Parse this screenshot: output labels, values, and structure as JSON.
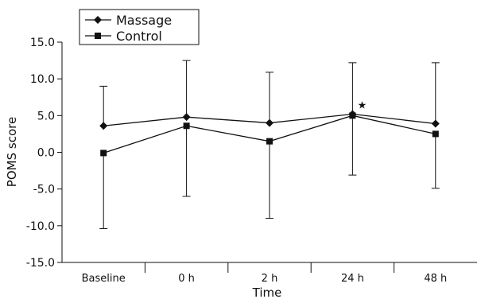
{
  "chart_data": {
    "type": "line",
    "title": "",
    "xlabel": "Time",
    "ylabel": "POMS score",
    "categories": [
      "Baseline",
      "0 h",
      "2 h",
      "24 h",
      "48 h"
    ],
    "ylim": [
      -15.0,
      15.0
    ],
    "yticks": [
      -15.0,
      -10.0,
      -5.0,
      0.0,
      5.0,
      10.0,
      15.0
    ],
    "ytick_labels": [
      "-15.0",
      "-10.0",
      "-5.0",
      "0.0",
      "5.0",
      "10.0",
      "15.0"
    ],
    "grid": false,
    "legend_position": "top-left",
    "series": [
      {
        "name": "Massage",
        "marker": "diamond",
        "values": [
          3.6,
          4.8,
          4.0,
          5.2,
          3.9
        ],
        "err_upper": [
          9.0,
          12.5,
          10.9,
          12.2,
          12.2
        ],
        "err_lower": [
          null,
          null,
          null,
          null,
          null
        ]
      },
      {
        "name": "Control",
        "marker": "square",
        "values": [
          -0.1,
          3.6,
          1.5,
          5.0,
          2.5
        ],
        "err_upper": [
          null,
          null,
          null,
          null,
          null
        ],
        "err_lower": [
          -10.4,
          -6.0,
          -9.0,
          -3.1,
          -4.9
        ]
      }
    ],
    "annotations": [
      {
        "text": "★",
        "category": "24 h",
        "y": 6.5
      }
    ]
  }
}
